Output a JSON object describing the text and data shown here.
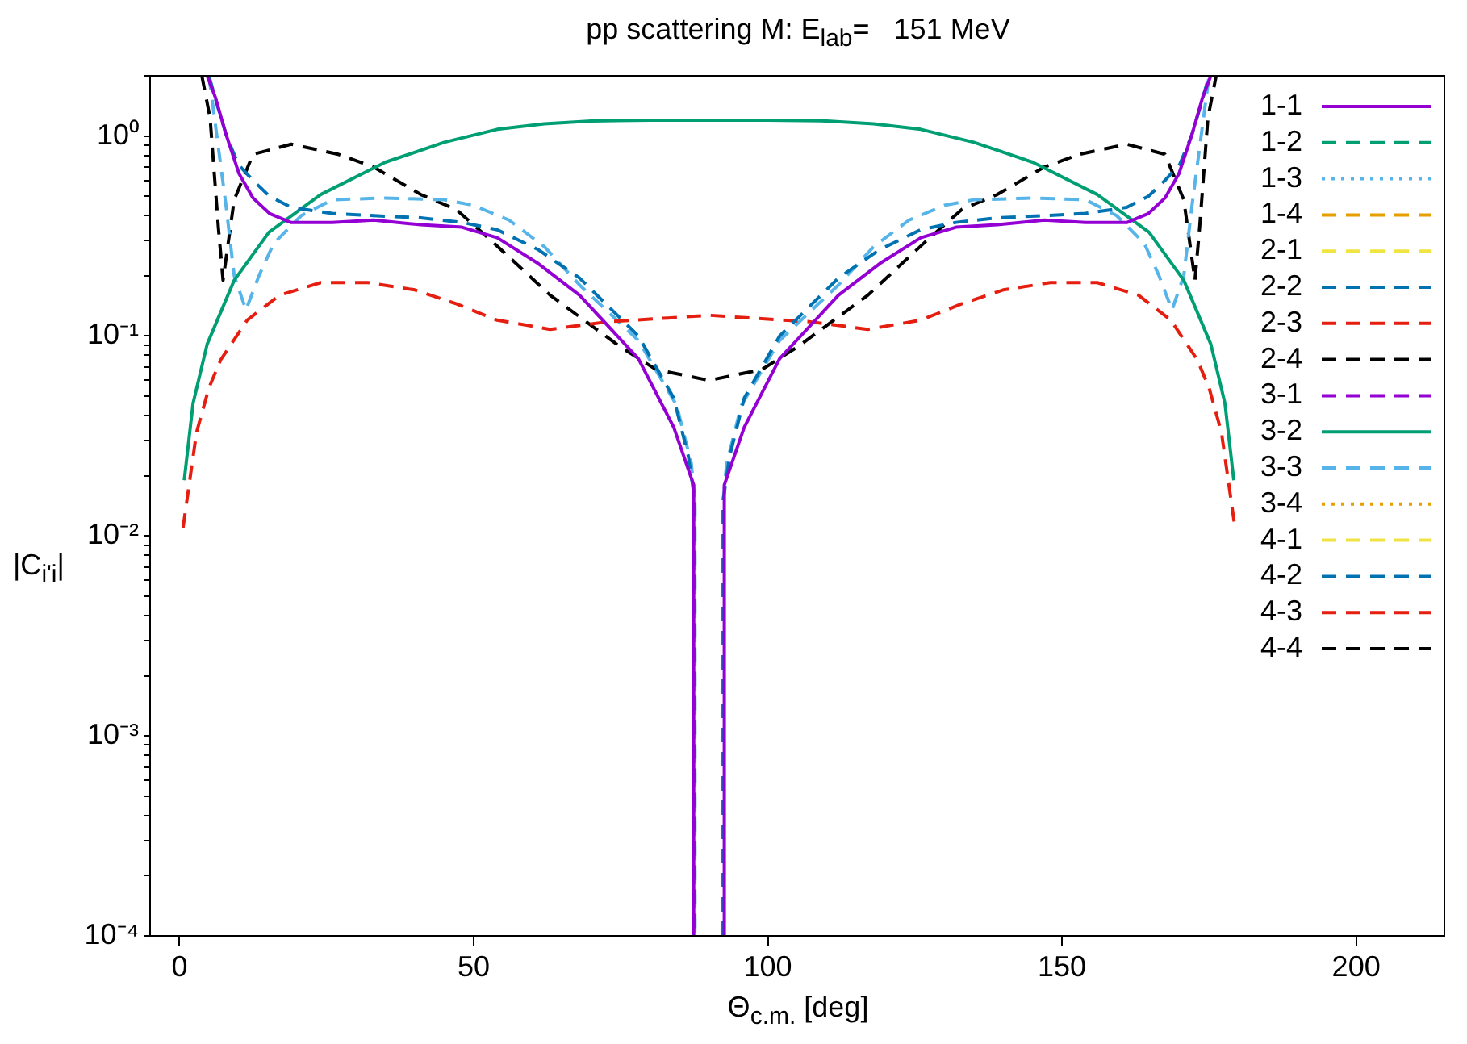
{
  "chart_data": {
    "type": "line",
    "title": "pp scattering M: E$_{lab}$=   151 MeV",
    "xlabel": "Θ$_{c.m.}$ [deg]",
    "ylabel": "|C$_{i'i}$|",
    "log": true,
    "legend": "top right",
    "marker": "none",
    "xlim": [
      -5,
      215
    ],
    "xticks": [
      0,
      50,
      100,
      150,
      200
    ],
    "ylim": [
      0.0001,
      2
    ],
    "yticks": [
      {
        "value": 0.0001,
        "label": "10⁻⁴"
      },
      {
        "value": 0.0002,
        "label": null
      },
      {
        "value": 0.0003,
        "label": null
      },
      {
        "value": 0.0004,
        "label": null
      },
      {
        "value": 0.0005,
        "label": null
      },
      {
        "value": 0.0006,
        "label": null
      },
      {
        "value": 0.0007,
        "label": null
      },
      {
        "value": 0.0008,
        "label": null
      },
      {
        "value": 0.0009,
        "label": null
      },
      {
        "value": 0.001,
        "label": "10⁻³"
      },
      {
        "value": 0.002,
        "label": null
      },
      {
        "value": 0.003,
        "label": null
      },
      {
        "value": 0.004,
        "label": null
      },
      {
        "value": 0.005,
        "label": null
      },
      {
        "value": 0.006,
        "label": null
      },
      {
        "value": 0.007,
        "label": null
      },
      {
        "value": 0.008,
        "label": null
      },
      {
        "value": 0.009,
        "label": null
      },
      {
        "value": 0.01,
        "label": "10⁻²"
      },
      {
        "value": 0.02,
        "label": null
      },
      {
        "value": 0.03,
        "label": null
      },
      {
        "value": 0.04,
        "label": null
      },
      {
        "value": 0.05,
        "label": null
      },
      {
        "value": 0.06,
        "label": null
      },
      {
        "value": 0.07,
        "label": null
      },
      {
        "value": 0.08,
        "label": null
      },
      {
        "value": 0.09,
        "label": null
      },
      {
        "value": 0.1,
        "label": "10⁻¹"
      },
      {
        "value": 0.2,
        "label": null
      },
      {
        "value": 0.3,
        "label": null
      },
      {
        "value": 0.4,
        "label": null
      },
      {
        "value": 0.5,
        "label": null
      },
      {
        "value": 0.6,
        "label": null
      },
      {
        "value": 0.7,
        "label": null
      },
      {
        "value": 0.8,
        "label": null
      },
      {
        "value": 0.9,
        "label": null
      },
      {
        "value": 1,
        "label": "10⁰"
      },
      {
        "value": 2,
        "label": null
      }
    ],
    "series": [
      {
        "name": "1-1",
        "color": "#9400d3",
        "line_style": "solid",
        "x": [
          4.7,
          6.1,
          7.9,
          10.1,
          12.5,
          15.3,
          18.9,
          26,
          33,
          41,
          48,
          54,
          61,
          68,
          78,
          84,
          87.4,
          87.4,
          90,
          92.6,
          92.6,
          96,
          102,
          112,
          119,
          126,
          132,
          139,
          147,
          154,
          161.1,
          164.7,
          167.5,
          169.9,
          172.1,
          173.9,
          175.3
        ],
        "values": [
          2.0,
          1.56,
          1.02,
          0.65,
          0.49,
          0.41,
          0.37,
          0.37,
          0.38,
          0.36,
          0.35,
          0.31,
          0.23,
          0.16,
          0.077,
          0.035,
          0.018,
          0.0001,
          null,
          0.0001,
          0.018,
          0.035,
          0.077,
          0.16,
          0.23,
          0.31,
          0.35,
          0.36,
          0.38,
          0.37,
          0.37,
          0.41,
          0.49,
          0.65,
          1.02,
          1.56,
          2.0
        ]
      },
      {
        "name": "1-2",
        "color": "#009e73",
        "line_style": "dashed"
      },
      {
        "name": "1-3",
        "color": "#56b4e9",
        "line_style": "dotted"
      },
      {
        "name": "1-4",
        "color": "#e69f00",
        "line_style": "dashed"
      },
      {
        "name": "2-1",
        "color": "#f0e442",
        "line_style": "dashed"
      },
      {
        "name": "2-2",
        "color": "#0072b2",
        "line_style": "dashed",
        "x": [
          5,
          6.5,
          8,
          10,
          12.5,
          15.3,
          19,
          26,
          33,
          41,
          48,
          54,
          61,
          68,
          78,
          84,
          86.5,
          87.6,
          87.6,
          90,
          92.4,
          92.4,
          93.5,
          96,
          102,
          112,
          119,
          126,
          132,
          139,
          147,
          154,
          161,
          164.7,
          167.5,
          170,
          172,
          173.5,
          175
        ],
        "values": [
          2.0,
          1.4,
          1.0,
          0.72,
          0.6,
          0.5,
          0.44,
          0.41,
          0.4,
          0.39,
          0.37,
          0.34,
          0.27,
          0.195,
          0.1,
          0.049,
          0.025,
          0.015,
          0.0001,
          null,
          0.0001,
          0.015,
          0.025,
          0.049,
          0.1,
          0.195,
          0.27,
          0.34,
          0.37,
          0.39,
          0.4,
          0.41,
          0.44,
          0.5,
          0.6,
          0.72,
          1.0,
          1.4,
          2.0
        ]
      },
      {
        "name": "2-3",
        "color": "#e51e10",
        "line_style": "dashed",
        "x": [
          0.6,
          2.9,
          5,
          7,
          11.5,
          17,
          24,
          32,
          40,
          47,
          54,
          63,
          73,
          83,
          90,
          97,
          107,
          117,
          126,
          133,
          140,
          148,
          156,
          163,
          168.5,
          173,
          175,
          177.1,
          179.4
        ],
        "values": [
          0.011,
          0.033,
          0.055,
          0.076,
          0.12,
          0.16,
          0.185,
          0.185,
          0.17,
          0.145,
          0.12,
          0.108,
          0.118,
          0.123,
          0.127,
          0.123,
          0.118,
          0.108,
          0.12,
          0.145,
          0.17,
          0.185,
          0.185,
          0.16,
          0.12,
          0.076,
          0.055,
          0.033,
          0.011
        ]
      },
      {
        "name": "2-4",
        "color": "#000000",
        "line_style": "dashed"
      },
      {
        "name": "3-1",
        "color": "#9400d3",
        "line_style": "dashed"
      },
      {
        "name": "3-2",
        "color": "#009e73",
        "line_style": "solid",
        "x": [
          0.8,
          2.3,
          4.7,
          9.3,
          15.2,
          24,
          35,
          45,
          54,
          62,
          70,
          80,
          90,
          100,
          110,
          118,
          126,
          135,
          145,
          156,
          164.8,
          170.7,
          175.3,
          177.7,
          179.2
        ],
        "values": [
          0.019,
          0.046,
          0.091,
          0.19,
          0.33,
          0.51,
          0.74,
          0.93,
          1.08,
          1.15,
          1.19,
          1.2,
          1.2,
          1.2,
          1.19,
          1.15,
          1.08,
          0.93,
          0.74,
          0.51,
          0.33,
          0.19,
          0.091,
          0.046,
          0.019
        ]
      },
      {
        "name": "3-3",
        "color": "#56b4e9",
        "line_style": "dashed",
        "x": [
          5,
          6,
          7.9,
          9.3,
          11.3,
          13.5,
          16,
          20.7,
          26,
          35,
          45,
          50,
          56,
          62,
          68,
          78,
          84.5,
          87,
          87.6,
          87.6,
          90,
          92.4,
          92.4,
          93,
          95.5,
          102,
          112,
          118,
          124,
          130,
          135,
          145,
          154,
          159.3,
          164,
          166.5,
          168.7,
          170.7,
          172.1,
          174,
          175
        ],
        "values": [
          2.0,
          1.2,
          0.45,
          0.2,
          0.135,
          0.2,
          0.29,
          0.4,
          0.48,
          0.49,
          0.48,
          0.45,
          0.38,
          0.28,
          0.18,
          0.095,
          0.045,
          0.023,
          0.015,
          0.0001,
          null,
          0.0001,
          0.015,
          0.023,
          0.045,
          0.095,
          0.18,
          0.28,
          0.38,
          0.45,
          0.48,
          0.49,
          0.48,
          0.4,
          0.29,
          0.2,
          0.135,
          0.2,
          0.45,
          1.2,
          2.0
        ]
      },
      {
        "name": "3-4",
        "color": "#e69f00",
        "line_style": "dotted"
      },
      {
        "name": "4-1",
        "color": "#f0e442",
        "line_style": "dashed"
      },
      {
        "name": "4-2",
        "color": "#0072b2",
        "line_style": "dashed"
      },
      {
        "name": "4-3",
        "color": "#e51e10",
        "line_style": "dashed"
      },
      {
        "name": "4-4",
        "color": "#000000",
        "line_style": "dashed",
        "x": [
          3.8,
          5.2,
          6.6,
          7.4,
          9.3,
          12.5,
          19,
          27,
          33,
          41,
          47,
          53,
          63,
          75,
          81,
          90,
          99,
          105,
          117,
          127,
          133,
          139,
          147,
          153,
          161,
          167.5,
          170.7,
          172.6,
          173.4,
          174.8,
          176.2
        ],
        "values": [
          2.0,
          1.23,
          0.35,
          0.19,
          0.48,
          0.81,
          0.91,
          0.81,
          0.7,
          0.51,
          0.43,
          0.3,
          0.16,
          0.088,
          0.068,
          0.06,
          0.068,
          0.088,
          0.16,
          0.3,
          0.43,
          0.51,
          0.7,
          0.81,
          0.91,
          0.81,
          0.48,
          0.19,
          0.35,
          1.23,
          2.0
        ]
      }
    ]
  }
}
